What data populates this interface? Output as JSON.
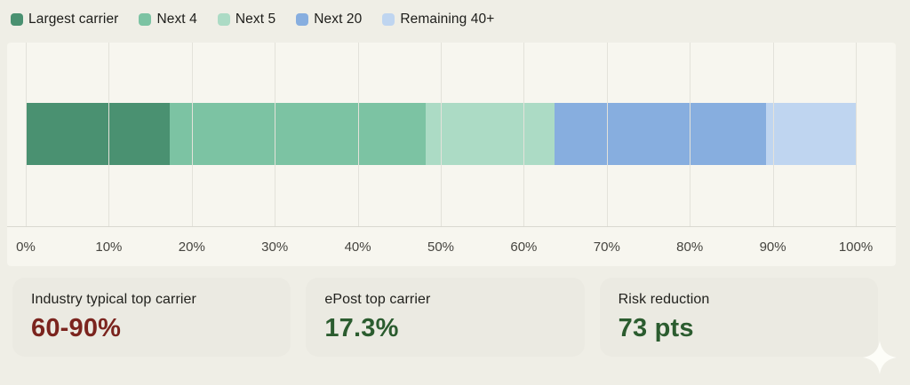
{
  "chart_data": {
    "type": "bar",
    "orientation": "horizontal",
    "stacked": true,
    "title": "",
    "xlabel": "",
    "ylabel": "",
    "xlim": [
      0,
      100
    ],
    "grid": true,
    "legend_position": "top",
    "series": [
      {
        "name": "Largest carrier",
        "value": 17.3,
        "color": "#4A9171"
      },
      {
        "name": "Next 4",
        "value": 30.9,
        "color": "#7CC3A3"
      },
      {
        "name": "Next 5",
        "value": 15.5,
        "color": "#ACDBC5"
      },
      {
        "name": "Next 20",
        "value": 25.5,
        "color": "#87AEDF"
      },
      {
        "name": "Remaining 40+",
        "value": 10.8,
        "color": "#BFD5F0"
      }
    ],
    "x_ticks": [
      "0%",
      "10%",
      "20%",
      "30%",
      "40%",
      "50%",
      "60%",
      "70%",
      "80%",
      "90%",
      "100%"
    ]
  },
  "cards": [
    {
      "label": "Industry typical top carrier",
      "value": "60-90%",
      "value_color": "#7B241E"
    },
    {
      "label": "ePost top carrier",
      "value": "17.3%",
      "value_color": "#2B5C2F"
    },
    {
      "label": "Risk reduction",
      "value": "73 pts",
      "value_color": "#2B5C2F"
    }
  ],
  "decorations": {
    "sparkle_icon": "four-pointed-star",
    "sparkle_color": "#fdfdf8"
  }
}
